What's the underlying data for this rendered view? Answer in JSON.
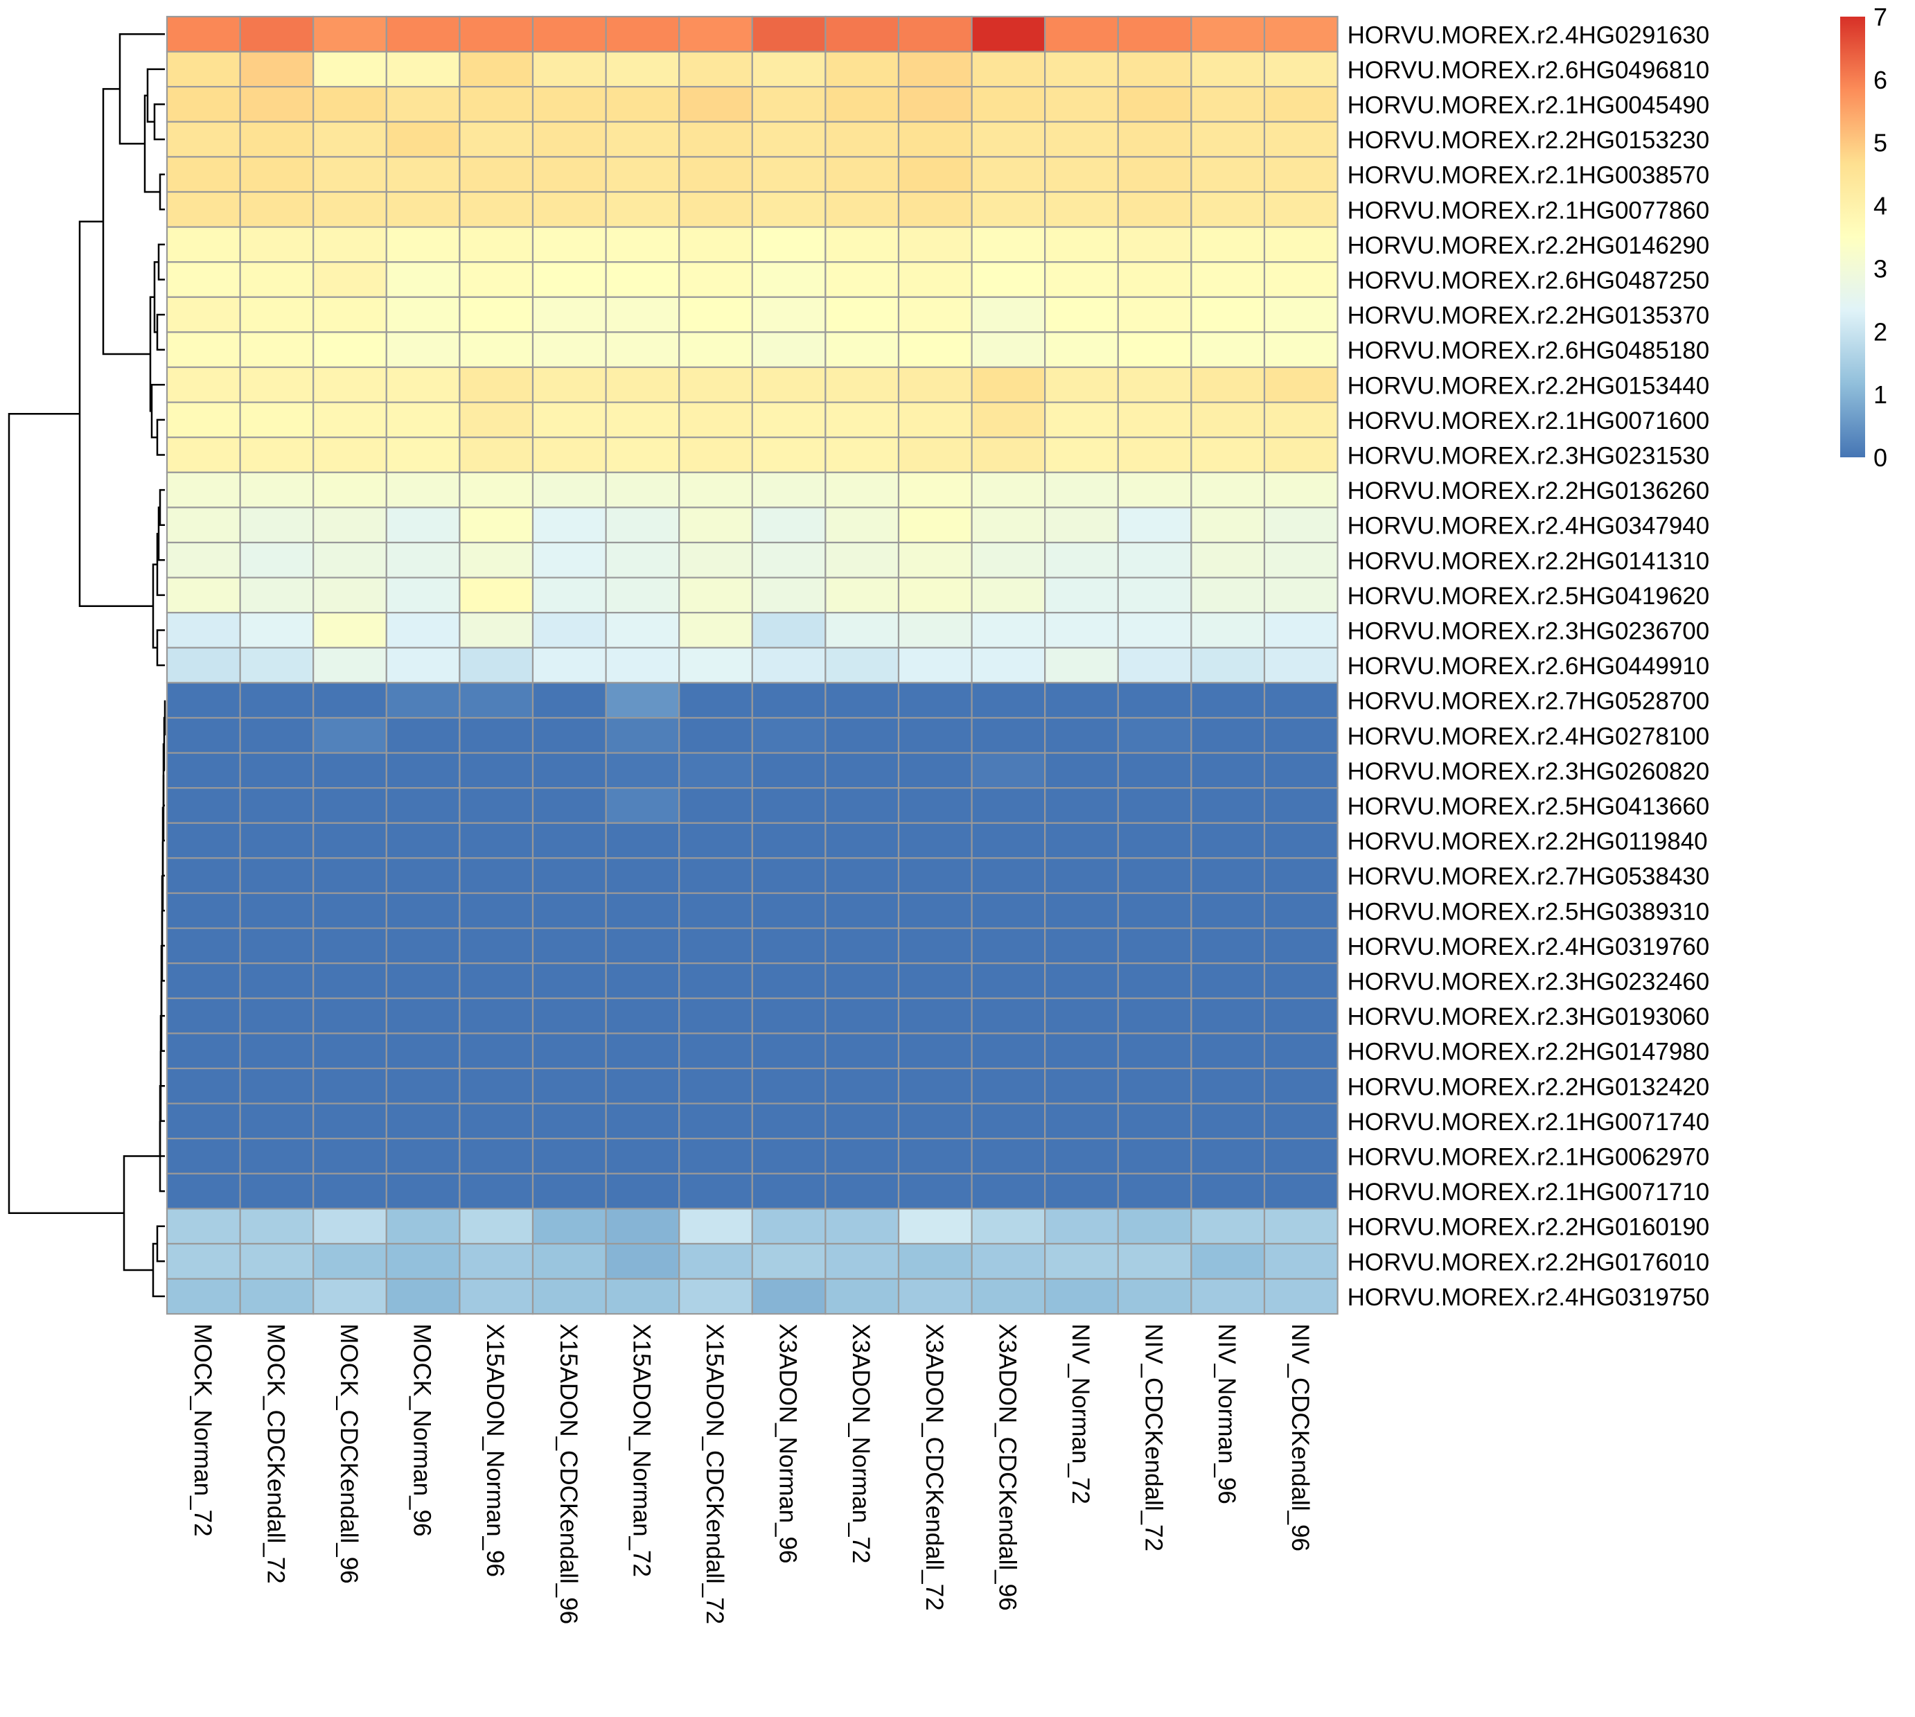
{
  "chart_data": {
    "type": "heatmap",
    "title": "",
    "columns": [
      "MOCK_Norman_72",
      "MOCK_CDCKendall_72",
      "MOCK_CDCKendall_96",
      "MOCK_Norman_96",
      "X15ADON_Norman_96",
      "X15ADON_CDCKendall_96",
      "X15ADON_Norman_72",
      "X15ADON_CDCKendall_72",
      "X3ADON_Norman_96",
      "X3ADON_Norman_72",
      "X3ADON_CDCKendall_72",
      "X3ADON_CDCKendall_96",
      "NIV_Norman_72",
      "NIV_CDCKendall_72",
      "NIV_Norman_96",
      "NIV_CDCKendall_96"
    ],
    "rows": [
      "HORVU.MOREX.r2.4HG0291630",
      "HORVU.MOREX.r2.6HG0496810",
      "HORVU.MOREX.r2.1HG0045490",
      "HORVU.MOREX.r2.2HG0153230",
      "HORVU.MOREX.r2.1HG0038570",
      "HORVU.MOREX.r2.1HG0077860",
      "HORVU.MOREX.r2.2HG0146290",
      "HORVU.MOREX.r2.6HG0487250",
      "HORVU.MOREX.r2.2HG0135370",
      "HORVU.MOREX.r2.6HG0485180",
      "HORVU.MOREX.r2.2HG0153440",
      "HORVU.MOREX.r2.1HG0071600",
      "HORVU.MOREX.r2.3HG0231530",
      "HORVU.MOREX.r2.2HG0136260",
      "HORVU.MOREX.r2.4HG0347940",
      "HORVU.MOREX.r2.2HG0141310",
      "HORVU.MOREX.r2.5HG0419620",
      "HORVU.MOREX.r2.3HG0236700",
      "HORVU.MOREX.r2.6HG0449910",
      "HORVU.MOREX.r2.7HG0528700",
      "HORVU.MOREX.r2.4HG0278100",
      "HORVU.MOREX.r2.3HG0260820",
      "HORVU.MOREX.r2.5HG0413660",
      "HORVU.MOREX.r2.2HG0119840",
      "HORVU.MOREX.r2.7HG0538430",
      "HORVU.MOREX.r2.5HG0389310",
      "HORVU.MOREX.r2.4HG0319760",
      "HORVU.MOREX.r2.3HG0232460",
      "HORVU.MOREX.r2.3HG0193060",
      "HORVU.MOREX.r2.2HG0147980",
      "HORVU.MOREX.r2.2HG0132420",
      "HORVU.MOREX.r2.1HG0071740",
      "HORVU.MOREX.r2.1HG0062970",
      "HORVU.MOREX.r2.1HG0071710",
      "HORVU.MOREX.r2.2HG0160190",
      "HORVU.MOREX.r2.2HG0176010",
      "HORVU.MOREX.r2.4HG0319750"
    ],
    "values": [
      [
        5.9,
        6.1,
        5.7,
        5.9,
        5.9,
        5.9,
        5.9,
        5.8,
        6.3,
        6.1,
        6.0,
        7.0,
        5.9,
        5.9,
        5.7,
        5.7
      ],
      [
        4.6,
        4.9,
        3.7,
        3.8,
        4.7,
        4.2,
        4.1,
        4.4,
        4.2,
        4.6,
        4.8,
        4.5,
        4.4,
        4.5,
        4.3,
        4.2
      ],
      [
        4.7,
        4.8,
        4.7,
        4.5,
        4.6,
        4.6,
        4.6,
        4.8,
        4.5,
        4.7,
        4.8,
        4.6,
        4.5,
        4.7,
        4.5,
        4.6
      ],
      [
        4.5,
        4.6,
        4.4,
        4.7,
        4.4,
        4.5,
        4.4,
        4.5,
        4.4,
        4.5,
        4.6,
        4.4,
        4.4,
        4.5,
        4.4,
        4.4
      ],
      [
        4.6,
        4.6,
        4.4,
        4.4,
        4.5,
        4.5,
        4.4,
        4.5,
        4.4,
        4.5,
        4.7,
        4.4,
        4.4,
        4.5,
        4.4,
        4.4
      ],
      [
        4.5,
        4.5,
        4.4,
        4.4,
        4.4,
        4.4,
        4.3,
        4.4,
        4.3,
        4.4,
        4.5,
        4.3,
        4.3,
        4.4,
        4.3,
        4.3
      ],
      [
        3.7,
        3.8,
        3.8,
        3.6,
        3.7,
        3.6,
        3.6,
        3.7,
        3.5,
        3.7,
        3.8,
        3.6,
        3.7,
        3.8,
        3.7,
        3.7
      ],
      [
        3.6,
        3.7,
        3.9,
        3.4,
        3.6,
        3.5,
        3.5,
        3.6,
        3.4,
        3.6,
        3.7,
        3.5,
        3.6,
        3.7,
        3.6,
        3.6
      ],
      [
        3.8,
        3.7,
        3.7,
        3.4,
        3.5,
        3.3,
        3.3,
        3.5,
        3.3,
        3.5,
        3.6,
        3.2,
        3.5,
        3.6,
        3.5,
        3.4
      ],
      [
        3.6,
        3.6,
        3.5,
        3.3,
        3.4,
        3.3,
        3.3,
        3.4,
        3.2,
        3.4,
        3.5,
        3.2,
        3.4,
        3.5,
        3.4,
        3.4
      ],
      [
        3.9,
        3.9,
        3.9,
        3.9,
        4.3,
        4.1,
        4.1,
        4.1,
        4.1,
        4.1,
        4.2,
        4.6,
        4.1,
        4.1,
        4.3,
        4.5
      ],
      [
        3.7,
        3.7,
        3.8,
        3.8,
        4.2,
        3.9,
        3.9,
        4.0,
        3.9,
        3.9,
        4.0,
        4.4,
        3.9,
        4.0,
        4.1,
        4.1
      ],
      [
        3.9,
        3.9,
        3.9,
        3.8,
        4.1,
        4.0,
        3.9,
        4.0,
        3.9,
        3.9,
        4.1,
        4.2,
        3.9,
        4.0,
        4.0,
        4.1
      ],
      [
        3.1,
        3.1,
        3.2,
        3.1,
        3.2,
        3.0,
        3.0,
        3.1,
        3.0,
        3.1,
        3.3,
        3.1,
        3.0,
        3.1,
        3.1,
        3.1
      ],
      [
        3.0,
        2.8,
        2.9,
        2.5,
        3.4,
        2.4,
        2.6,
        3.1,
        2.6,
        3.0,
        3.4,
        3.0,
        2.9,
        2.4,
        3.0,
        2.8
      ],
      [
        2.9,
        2.6,
        2.8,
        2.6,
        3.0,
        2.4,
        2.6,
        2.9,
        2.7,
        2.9,
        3.1,
        2.8,
        2.6,
        2.5,
        2.9,
        2.8
      ],
      [
        3.1,
        2.8,
        2.9,
        2.5,
        3.6,
        2.5,
        2.6,
        3.1,
        2.8,
        3.1,
        3.2,
        3.0,
        2.5,
        2.5,
        2.8,
        2.8
      ],
      [
        2.2,
        2.4,
        3.3,
        2.3,
        2.9,
        2.2,
        2.4,
        3.1,
        2.0,
        2.5,
        2.6,
        2.4,
        2.4,
        2.4,
        2.5,
        2.3
      ],
      [
        2.0,
        2.1,
        2.6,
        2.3,
        2.0,
        2.3,
        2.3,
        2.4,
        2.2,
        2.1,
        2.3,
        2.3,
        2.6,
        2.2,
        2.1,
        2.2
      ],
      [
        0.0,
        0.0,
        0.0,
        0.15,
        0.15,
        0.0,
        0.5,
        0.0,
        0.0,
        0.0,
        0.0,
        0.0,
        0.0,
        0.0,
        0.0,
        0.0
      ],
      [
        0.0,
        0.0,
        0.2,
        0.0,
        0.0,
        0.0,
        0.15,
        0.0,
        0.05,
        0.0,
        0.0,
        0.0,
        0.0,
        0.05,
        0.0,
        0.0
      ],
      [
        0.0,
        0.0,
        0.0,
        0.0,
        0.0,
        0.0,
        0.05,
        0.05,
        0.0,
        0.0,
        0.0,
        0.1,
        0.0,
        0.0,
        0.0,
        0.0
      ],
      [
        0.0,
        0.0,
        0.0,
        0.0,
        0.0,
        0.0,
        0.2,
        0.0,
        0.0,
        0.0,
        0.0,
        0.0,
        0.0,
        0.0,
        0.0,
        0.0
      ],
      [
        0.0,
        0.0,
        0.0,
        0.0,
        0.0,
        0.0,
        0.0,
        0.0,
        0.0,
        0.0,
        0.0,
        0.0,
        0.0,
        0.0,
        0.0,
        0.0
      ],
      [
        0.0,
        0.0,
        0.0,
        0.0,
        0.0,
        0.0,
        0.0,
        0.0,
        0.0,
        0.0,
        0.0,
        0.0,
        0.0,
        0.0,
        0.0,
        0.0
      ],
      [
        0.0,
        0.0,
        0.0,
        0.0,
        0.0,
        0.0,
        0.0,
        0.0,
        0.0,
        0.0,
        0.0,
        0.0,
        0.0,
        0.0,
        0.0,
        0.0
      ],
      [
        0.0,
        0.0,
        0.0,
        0.0,
        0.0,
        0.0,
        0.0,
        0.0,
        0.0,
        0.0,
        0.0,
        0.0,
        0.0,
        0.0,
        0.0,
        0.0
      ],
      [
        0.0,
        0.0,
        0.0,
        0.0,
        0.0,
        0.0,
        0.0,
        0.0,
        0.0,
        0.0,
        0.0,
        0.0,
        0.0,
        0.0,
        0.0,
        0.0
      ],
      [
        0.0,
        0.0,
        0.0,
        0.0,
        0.0,
        0.0,
        0.0,
        0.0,
        0.0,
        0.0,
        0.0,
        0.0,
        0.0,
        0.0,
        0.0,
        0.0
      ],
      [
        0.0,
        0.0,
        0.0,
        0.0,
        0.0,
        0.0,
        0.0,
        0.0,
        0.0,
        0.0,
        0.0,
        0.0,
        0.0,
        0.0,
        0.0,
        0.0
      ],
      [
        0.0,
        0.0,
        0.0,
        0.0,
        0.0,
        0.0,
        0.0,
        0.0,
        0.0,
        0.0,
        0.0,
        0.0,
        0.0,
        0.0,
        0.0,
        0.0
      ],
      [
        0.0,
        0.0,
        0.0,
        0.0,
        0.0,
        0.0,
        0.0,
        0.0,
        0.0,
        0.0,
        0.0,
        0.0,
        0.0,
        0.0,
        0.0,
        0.0
      ],
      [
        0.0,
        0.0,
        0.0,
        0.0,
        0.0,
        0.0,
        0.0,
        0.0,
        0.0,
        0.0,
        0.0,
        0.0,
        0.0,
        0.0,
        0.0,
        0.0
      ],
      [
        0.0,
        0.0,
        0.0,
        0.0,
        0.0,
        0.0,
        0.0,
        0.0,
        0.0,
        0.0,
        0.0,
        0.0,
        0.0,
        0.0,
        0.0,
        0.0
      ],
      [
        1.5,
        1.5,
        1.8,
        1.3,
        1.7,
        1.1,
        1.0,
        2.0,
        1.4,
        1.4,
        2.1,
        1.7,
        1.4,
        1.3,
        1.5,
        1.5
      ],
      [
        1.5,
        1.5,
        1.3,
        1.2,
        1.4,
        1.3,
        1.0,
        1.4,
        1.5,
        1.4,
        1.3,
        1.4,
        1.5,
        1.5,
        1.2,
        1.4
      ],
      [
        1.3,
        1.3,
        1.6,
        1.1,
        1.4,
        1.3,
        1.3,
        1.6,
        1.0,
        1.3,
        1.4,
        1.3,
        1.2,
        1.3,
        1.4,
        1.4
      ]
    ],
    "color_scale": {
      "min": 0,
      "max": 7,
      "ticks": [
        "0",
        "1",
        "2",
        "3",
        "4",
        "5",
        "6",
        "7"
      ],
      "colors": [
        "#4575b4",
        "#91bfdb",
        "#e0f3f8",
        "#ffffbf",
        "#fee090",
        "#fc8d59",
        "#d73027"
      ]
    },
    "grid_color": "#999999",
    "legend_placement": "top-right",
    "row_dendrogram": true
  }
}
